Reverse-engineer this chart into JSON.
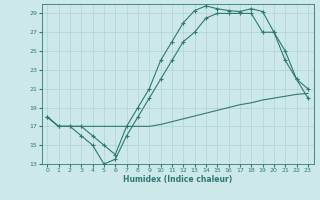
{
  "bg_color": "#cce8e8",
  "line_color": "#2d7a72",
  "xlabel": "Humidex (Indice chaleur)",
  "xlim_min": -0.5,
  "xlim_max": 23.5,
  "ylim_min": 13,
  "ylim_max": 30,
  "xticks": [
    0,
    1,
    2,
    3,
    4,
    5,
    6,
    7,
    8,
    9,
    10,
    11,
    12,
    13,
    14,
    15,
    16,
    17,
    18,
    19,
    20,
    21,
    22,
    23
  ],
  "yticks": [
    13,
    15,
    17,
    19,
    21,
    23,
    25,
    27,
    29
  ],
  "line1_x": [
    0,
    1,
    2,
    3,
    4,
    5,
    6,
    7,
    8,
    9,
    10,
    11,
    12,
    13,
    14,
    15,
    16,
    17,
    18,
    19,
    20,
    21,
    22,
    23
  ],
  "line1_y": [
    18,
    17,
    17,
    17,
    16,
    15,
    14,
    17,
    19,
    21,
    24,
    26,
    28,
    29.3,
    29.8,
    29.5,
    29.3,
    29.2,
    29.5,
    29.2,
    27,
    25,
    22,
    21
  ],
  "line2_x": [
    0,
    1,
    2,
    3,
    4,
    5,
    6,
    7,
    8,
    9,
    10,
    11,
    12,
    13,
    14,
    15,
    16,
    17,
    18,
    19,
    20,
    21,
    22,
    23
  ],
  "line2_y": [
    18,
    17,
    17,
    16,
    15,
    13,
    13.5,
    16,
    18,
    20,
    22,
    24,
    26,
    27,
    28.5,
    29,
    29,
    29,
    29,
    27,
    27,
    24,
    22,
    20
  ],
  "line3_x": [
    0,
    1,
    2,
    3,
    4,
    5,
    6,
    7,
    8,
    9,
    10,
    11,
    12,
    13,
    14,
    15,
    16,
    17,
    18,
    19,
    20,
    21,
    22,
    23
  ],
  "line3_y": [
    18,
    17,
    17,
    17,
    17,
    17,
    17,
    17,
    17,
    17,
    17.2,
    17.5,
    17.8,
    18.1,
    18.4,
    18.7,
    19.0,
    19.3,
    19.5,
    19.8,
    20.0,
    20.2,
    20.4,
    20.5
  ]
}
